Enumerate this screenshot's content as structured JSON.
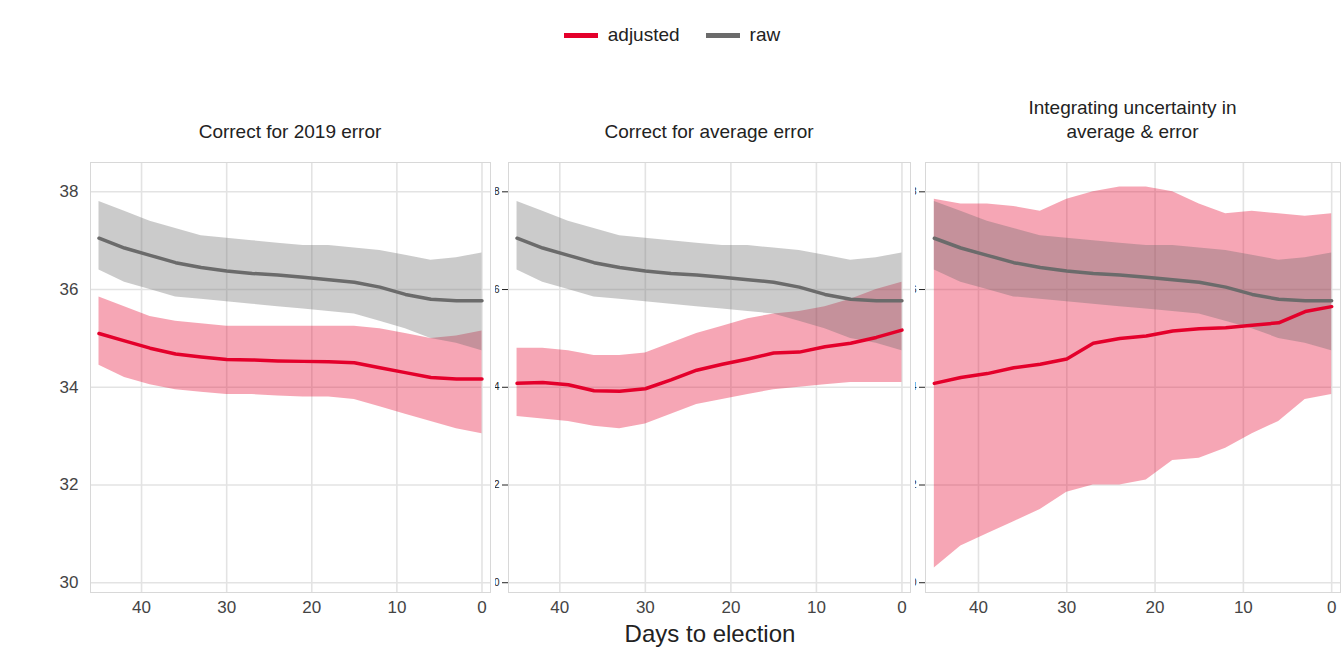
{
  "chart_data": {
    "type": "line",
    "legend": "top",
    "grid": true,
    "xlabel": "Days to election",
    "x": [
      45,
      42,
      39,
      36,
      33,
      30,
      27,
      24,
      21,
      18,
      15,
      12,
      9,
      6,
      3,
      0
    ],
    "xlim": [
      46,
      -1
    ],
    "xticks": [
      40,
      30,
      20,
      10,
      0
    ],
    "ylim": [
      29.8,
      38.6
    ],
    "yticks": [
      30,
      32,
      34,
      36,
      38
    ],
    "panels": [
      {
        "title": "Correct for 2019 error",
        "series": [
          {
            "name": "adjusted",
            "color": "#e4002b",
            "values": [
              35.1,
              34.95,
              34.8,
              34.68,
              34.62,
              34.57,
              34.56,
              34.54,
              34.53,
              34.52,
              34.5,
              34.4,
              34.3,
              34.2,
              34.17,
              34.17
            ],
            "upper": [
              35.85,
              35.65,
              35.45,
              35.35,
              35.3,
              35.25,
              35.25,
              35.25,
              35.25,
              35.25,
              35.25,
              35.2,
              35.1,
              35.0,
              35.05,
              35.15
            ],
            "lower": [
              34.45,
              34.2,
              34.05,
              33.95,
              33.9,
              33.85,
              33.85,
              33.82,
              33.8,
              33.8,
              33.75,
              33.6,
              33.45,
              33.3,
              33.15,
              33.05
            ]
          },
          {
            "name": "raw",
            "color": "#6b6b6b",
            "values": [
              37.05,
              36.85,
              36.7,
              36.55,
              36.45,
              36.38,
              36.33,
              36.3,
              36.25,
              36.2,
              36.15,
              36.05,
              35.9,
              35.8,
              35.77,
              35.77
            ],
            "upper": [
              37.8,
              37.6,
              37.4,
              37.25,
              37.1,
              37.05,
              37.0,
              36.95,
              36.9,
              36.9,
              36.85,
              36.8,
              36.7,
              36.6,
              36.65,
              36.75
            ],
            "lower": [
              36.4,
              36.15,
              36.0,
              35.85,
              35.8,
              35.75,
              35.7,
              35.65,
              35.6,
              35.55,
              35.5,
              35.35,
              35.2,
              35.0,
              34.9,
              34.75
            ]
          }
        ]
      },
      {
        "title": "Correct for average error",
        "series": [
          {
            "name": "adjusted",
            "color": "#e4002b",
            "values": [
              34.08,
              34.1,
              34.05,
              33.93,
              33.92,
              33.97,
              34.15,
              34.35,
              34.47,
              34.58,
              34.7,
              34.72,
              34.83,
              34.9,
              35.02,
              35.17
            ],
            "upper": [
              34.8,
              34.8,
              34.75,
              34.65,
              34.65,
              34.7,
              34.9,
              35.1,
              35.25,
              35.4,
              35.5,
              35.55,
              35.65,
              35.8,
              36.0,
              36.15
            ],
            "lower": [
              33.4,
              33.35,
              33.3,
              33.2,
              33.15,
              33.25,
              33.45,
              33.65,
              33.75,
              33.85,
              33.95,
              34.0,
              34.05,
              34.1,
              34.1,
              34.1
            ]
          },
          {
            "name": "raw",
            "color": "#6b6b6b",
            "values": [
              37.05,
              36.85,
              36.7,
              36.55,
              36.45,
              36.38,
              36.33,
              36.3,
              36.25,
              36.2,
              36.15,
              36.05,
              35.9,
              35.8,
              35.77,
              35.77
            ],
            "upper": [
              37.8,
              37.6,
              37.4,
              37.25,
              37.1,
              37.05,
              37.0,
              36.95,
              36.9,
              36.9,
              36.85,
              36.8,
              36.7,
              36.6,
              36.65,
              36.75
            ],
            "lower": [
              36.4,
              36.15,
              36.0,
              35.85,
              35.8,
              35.75,
              35.7,
              35.65,
              35.6,
              35.55,
              35.5,
              35.35,
              35.2,
              35.0,
              34.9,
              34.75
            ]
          }
        ]
      },
      {
        "title": "Integrating uncertainty in average & error",
        "series": [
          {
            "name": "adjusted",
            "color": "#e4002b",
            "values": [
              34.08,
              34.2,
              34.28,
              34.4,
              34.47,
              34.58,
              34.9,
              35.0,
              35.05,
              35.15,
              35.2,
              35.22,
              35.27,
              35.32,
              35.55,
              35.65
            ],
            "upper": [
              37.85,
              37.75,
              37.75,
              37.7,
              37.6,
              37.85,
              38.0,
              38.1,
              38.1,
              38.0,
              37.75,
              37.55,
              37.6,
              37.55,
              37.5,
              37.55
            ],
            "lower": [
              30.3,
              30.75,
              31.0,
              31.25,
              31.5,
              31.85,
              32.0,
              32.0,
              32.1,
              32.5,
              32.55,
              32.75,
              33.05,
              33.3,
              33.75,
              33.85
            ]
          },
          {
            "name": "raw",
            "color": "#6b6b6b",
            "values": [
              37.05,
              36.85,
              36.7,
              36.55,
              36.45,
              36.38,
              36.33,
              36.3,
              36.25,
              36.2,
              36.15,
              36.05,
              35.9,
              35.8,
              35.77,
              35.77
            ],
            "upper": [
              37.8,
              37.6,
              37.4,
              37.25,
              37.1,
              37.05,
              37.0,
              36.95,
              36.9,
              36.9,
              36.85,
              36.8,
              36.7,
              36.6,
              36.65,
              36.75
            ],
            "lower": [
              36.4,
              36.15,
              36.0,
              35.85,
              35.8,
              35.75,
              35.7,
              35.65,
              35.6,
              35.55,
              35.5,
              35.35,
              35.2,
              35.0,
              34.9,
              34.75
            ]
          }
        ]
      }
    ]
  }
}
